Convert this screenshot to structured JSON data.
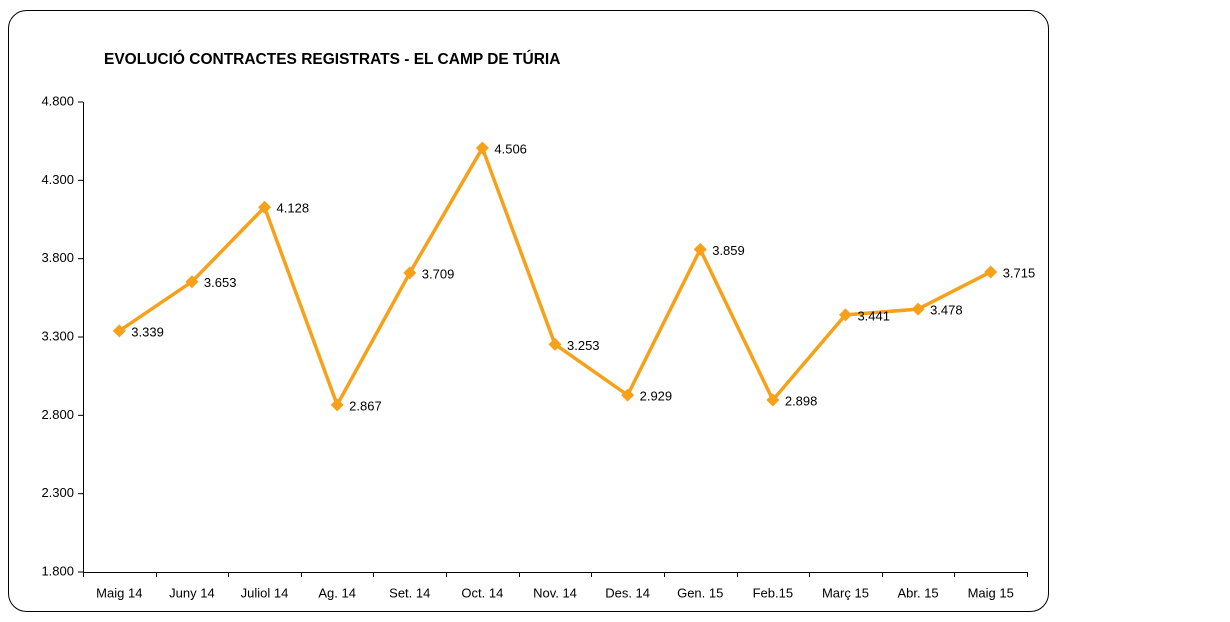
{
  "chart_data": {
    "type": "line",
    "title": "EVOLUCIÓ CONTRACTES REGISTRATS - EL CAMP DE TÚRIA",
    "categories": [
      "Maig 14",
      "Juny 14",
      "Juliol 14",
      "Ag. 14",
      "Set. 14",
      "Oct. 14",
      "Nov. 14",
      "Des. 14",
      "Gen. 15",
      "Feb.15",
      "Març 15",
      "Abr. 15",
      "Maig 15"
    ],
    "series": [
      {
        "name": "Contractes registrats",
        "color": "#f7a11a",
        "values": [
          3339,
          3653,
          4128,
          2867,
          3709,
          4506,
          3253,
          2929,
          3859,
          2898,
          3441,
          3478,
          3715
        ],
        "value_labels": [
          "3.339",
          "3.653",
          "4.128",
          "2.867",
          "3.709",
          "4.506",
          "3.253",
          "2.929",
          "3.859",
          "2.898",
          "3.441",
          "3.478",
          "3.715"
        ]
      }
    ],
    "ylim": [
      1800,
      4800
    ],
    "yticks": [
      {
        "value": 1800,
        "label": "1.800"
      },
      {
        "value": 2300,
        "label": "2.300"
      },
      {
        "value": 2800,
        "label": "2.800"
      },
      {
        "value": 3300,
        "label": "3.300"
      },
      {
        "value": 3800,
        "label": "3.800"
      },
      {
        "value": 4300,
        "label": "4.300"
      },
      {
        "value": 4800,
        "label": "4.800"
      }
    ],
    "grid": false
  }
}
